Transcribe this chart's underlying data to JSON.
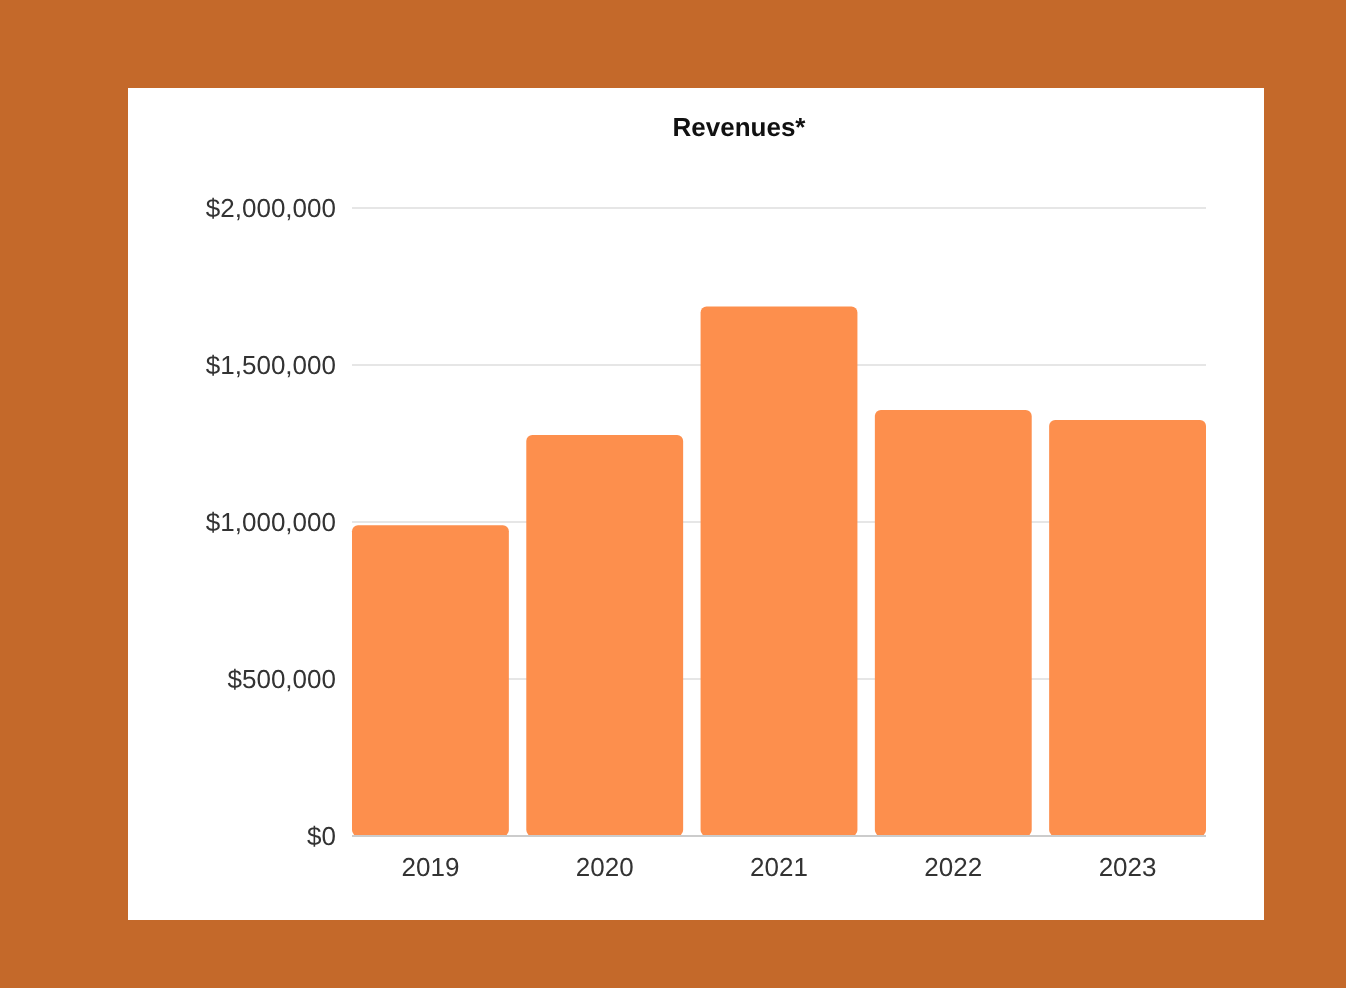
{
  "chart_data": {
    "type": "bar",
    "title": "Revenues*",
    "categories": [
      "2019",
      "2020",
      "2021",
      "2022",
      "2023"
    ],
    "values": [
      990000,
      1277000,
      1686000,
      1357000,
      1325000
    ],
    "color": "#fd8f4d",
    "ylim": [
      0,
      2000000
    ],
    "yticks": [
      {
        "value": 0,
        "label": "$0"
      },
      {
        "value": 500000,
        "label": "$500,000"
      },
      {
        "value": 1000000,
        "label": "$1,000,000"
      },
      {
        "value": 1500000,
        "label": "$1,500,000"
      },
      {
        "value": 2000000,
        "label": "$2,000,000"
      }
    ],
    "grid": "y"
  }
}
